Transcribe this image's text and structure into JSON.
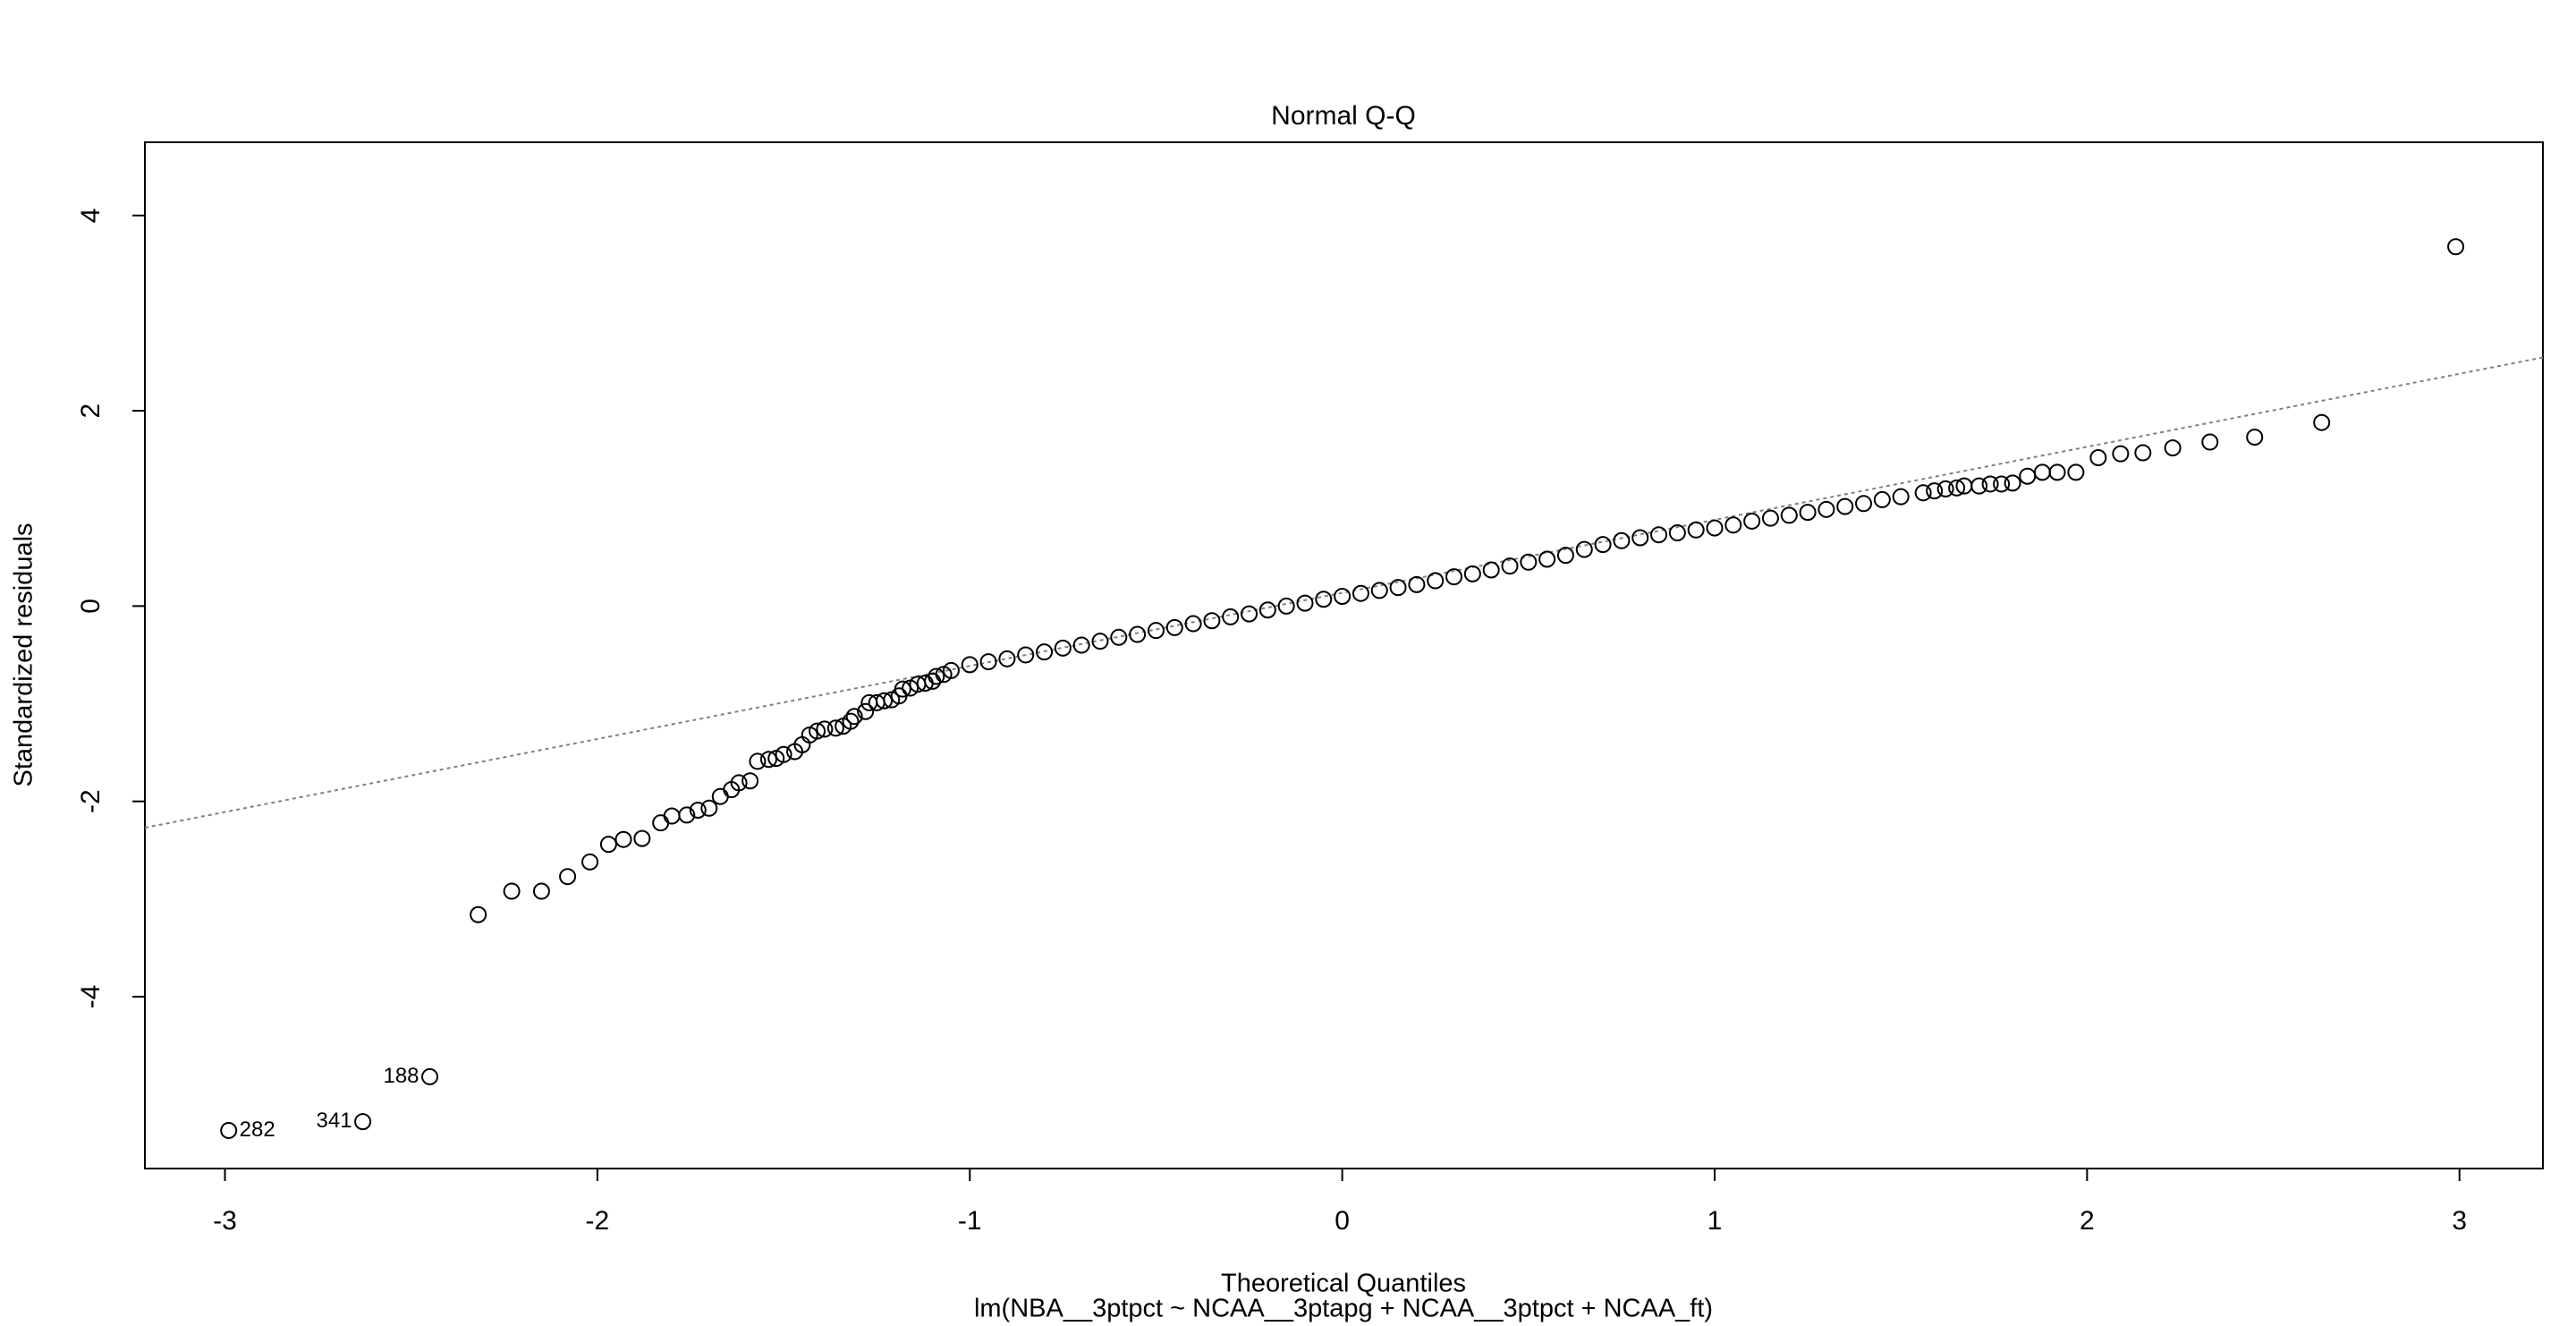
{
  "chart_data": {
    "type": "scatter",
    "title": "Normal Q-Q",
    "xlabel": "Theoretical Quantiles",
    "ylabel": "Standardized residuals",
    "subtitle": "lm(NBA__3ptpct ~ NCAA__3ptapg + NCAA__3ptpct + NCAA_ft)",
    "color": "#000000",
    "xlim": [
      -3.215,
      3.224
    ],
    "ylim": [
      -5.76,
      4.75
    ],
    "xticks": [
      -3,
      -2,
      -1,
      0,
      1,
      2,
      3
    ],
    "yticks": [
      -4,
      -2,
      0,
      2,
      4
    ],
    "reference_line": {
      "intercept": 0.135,
      "slope": 0.748,
      "color": "#808080"
    },
    "x": [
      -2.99,
      -2.63,
      -2.45,
      -2.32,
      -2.23,
      -2.15,
      -2.08,
      -2.02,
      -1.97,
      -1.93,
      -1.88,
      -1.83,
      -1.8,
      -1.76,
      -1.73,
      -1.7,
      -1.67,
      -1.64,
      -1.62,
      -1.59,
      -1.57,
      -1.54,
      -1.52,
      -1.5,
      -1.47,
      -1.45,
      -1.43,
      -1.41,
      -1.39,
      -1.36,
      -1.34,
      -1.32,
      -1.31,
      -1.28,
      -1.27,
      -1.25,
      -1.23,
      -1.21,
      -1.19,
      -1.18,
      -1.16,
      -1.14,
      -1.12,
      -1.1,
      -1.09,
      -1.07,
      -1.05,
      -1.0,
      -0.95,
      -0.9,
      -0.85,
      -0.8,
      -0.75,
      -0.7,
      -0.65,
      -0.6,
      -0.55,
      -0.5,
      -0.45,
      -0.4,
      -0.35,
      -0.3,
      -0.25,
      -0.2,
      -0.15,
      -0.1,
      -0.05,
      0.0,
      0.05,
      0.1,
      0.15,
      0.2,
      0.25,
      0.3,
      0.35,
      0.4,
      0.45,
      0.5,
      0.55,
      0.6,
      0.65,
      0.7,
      0.75,
      0.8,
      0.85,
      0.9,
      0.95,
      1.0,
      1.05,
      1.1,
      1.15,
      1.2,
      1.25,
      1.3,
      1.35,
      1.4,
      1.45,
      1.5,
      1.56,
      1.59,
      1.62,
      1.65,
      1.67,
      1.71,
      1.74,
      1.77,
      1.8,
      1.84,
      1.88,
      1.92,
      1.97,
      2.03,
      2.09,
      2.15,
      2.23,
      2.33,
      2.45,
      2.63,
      2.99
    ],
    "y": [
      -5.37,
      -5.28,
      -4.82,
      -3.16,
      -2.92,
      -2.92,
      -2.77,
      -2.62,
      -2.44,
      -2.39,
      -2.38,
      -2.22,
      -2.15,
      -2.14,
      -2.09,
      -2.07,
      -1.95,
      -1.88,
      -1.81,
      -1.79,
      -1.59,
      -1.57,
      -1.56,
      -1.52,
      -1.49,
      -1.42,
      -1.32,
      -1.28,
      -1.26,
      -1.25,
      -1.23,
      -1.18,
      -1.13,
      -1.08,
      -0.99,
      -0.99,
      -0.97,
      -0.96,
      -0.92,
      -0.85,
      -0.84,
      -0.8,
      -0.79,
      -0.77,
      -0.72,
      -0.7,
      -0.66,
      -0.6,
      -0.57,
      -0.54,
      -0.5,
      -0.47,
      -0.43,
      -0.4,
      -0.36,
      -0.32,
      -0.29,
      -0.25,
      -0.22,
      -0.18,
      -0.15,
      -0.11,
      -0.08,
      -0.04,
      0.0,
      0.03,
      0.07,
      0.1,
      0.13,
      0.16,
      0.19,
      0.22,
      0.26,
      0.3,
      0.33,
      0.37,
      0.41,
      0.45,
      0.48,
      0.52,
      0.58,
      0.63,
      0.67,
      0.7,
      0.73,
      0.75,
      0.78,
      0.8,
      0.83,
      0.87,
      0.9,
      0.93,
      0.96,
      0.99,
      1.02,
      1.05,
      1.09,
      1.12,
      1.16,
      1.18,
      1.2,
      1.21,
      1.23,
      1.23,
      1.25,
      1.25,
      1.26,
      1.33,
      1.37,
      1.37,
      1.37,
      1.52,
      1.56,
      1.57,
      1.62,
      1.68,
      1.73,
      1.88,
      3.68
    ],
    "point_labels": [
      "282",
      "341",
      "188",
      null,
      null,
      null,
      null,
      null,
      null,
      null,
      null,
      null,
      null,
      null,
      null,
      null,
      null,
      null,
      null,
      null,
      null,
      null,
      null,
      null,
      null,
      null,
      null,
      null,
      null,
      null,
      null,
      null,
      null,
      null,
      null,
      null,
      null,
      null,
      null,
      null,
      null,
      null,
      null,
      null,
      null,
      null,
      null,
      null,
      null,
      null,
      null,
      null,
      null,
      null,
      null,
      null,
      null,
      null,
      null,
      null,
      null,
      null,
      null,
      null,
      null,
      null,
      null,
      null,
      null,
      null,
      null,
      null,
      null,
      null,
      null,
      null,
      null,
      null,
      null,
      null,
      null,
      null,
      null,
      null,
      null,
      null,
      null,
      null,
      null,
      null,
      null,
      null,
      null,
      null,
      null,
      null,
      null,
      null,
      null,
      null,
      null,
      null,
      null,
      null,
      null,
      null,
      null,
      null,
      null,
      null,
      null,
      null,
      null,
      null,
      null,
      null,
      null,
      null,
      null
    ]
  }
}
